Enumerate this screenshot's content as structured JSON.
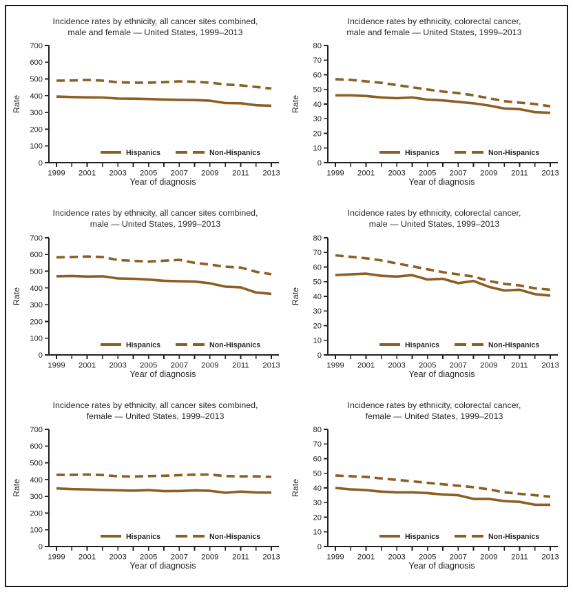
{
  "figure": {
    "line_color": "#8C5F23",
    "axis_color": "#231F20",
    "legend_labels": [
      "Hispanics",
      "Non-Hispanics"
    ]
  },
  "chart_data": [
    {
      "type": "line",
      "title_line1": "Incidence rates by ethnicity, all cancer sites combined,",
      "title_line2": "male and female — United States, 1999–2013",
      "xlabel": "Year of diagnosis",
      "ylabel": "Rate",
      "ylim": [
        0,
        700
      ],
      "ytick_step": 100,
      "grid": false,
      "legend_position": "bottom-center",
      "x": [
        1999,
        2000,
        2001,
        2002,
        2003,
        2004,
        2005,
        2006,
        2007,
        2008,
        2009,
        2010,
        2011,
        2012,
        2013
      ],
      "xtick_labels": [
        "1999",
        "2001",
        "2003",
        "2005",
        "2007",
        "2009",
        "2011",
        "2013"
      ],
      "series": [
        {
          "name": "Hispanics",
          "style": "solid",
          "values": [
            395,
            392,
            390,
            389,
            383,
            382,
            380,
            377,
            375,
            374,
            370,
            356,
            355,
            343,
            340
          ]
        },
        {
          "name": "Non-Hispanics",
          "style": "dashed",
          "values": [
            490,
            491,
            494,
            490,
            480,
            478,
            478,
            481,
            486,
            483,
            478,
            467,
            462,
            452,
            443
          ]
        }
      ]
    },
    {
      "type": "line",
      "title_line1": "Incidence rates by ethnicity, colorectal cancer,",
      "title_line2": "male and female — United States, 1999–2013",
      "xlabel": "Year of diagnosis",
      "ylabel": "Rate",
      "ylim": [
        0,
        80
      ],
      "ytick_step": 10,
      "grid": false,
      "legend_position": "bottom-center",
      "x": [
        1999,
        2000,
        2001,
        2002,
        2003,
        2004,
        2005,
        2006,
        2007,
        2008,
        2009,
        2010,
        2011,
        2012,
        2013
      ],
      "xtick_labels": [
        "1999",
        "2001",
        "2003",
        "2005",
        "2007",
        "2009",
        "2011",
        "2013"
      ],
      "series": [
        {
          "name": "Hispanics",
          "style": "solid",
          "values": [
            46,
            46,
            45.5,
            44.5,
            44,
            44.5,
            43,
            42.5,
            41.5,
            40.5,
            39,
            37,
            36.5,
            34.5,
            34
          ]
        },
        {
          "name": "Non-Hispanics",
          "style": "dashed",
          "values": [
            57,
            56.5,
            55.5,
            54.5,
            53,
            51.5,
            50,
            48.5,
            47.5,
            46,
            44,
            42,
            41,
            40,
            38.5
          ]
        }
      ]
    },
    {
      "type": "line",
      "title_line1": "Incidence rates by ethnicity, all cancer sites combined,",
      "title_line2": "male — United States, 1999–2013",
      "xlabel": "Year of diagnosis",
      "ylabel": "Rate",
      "ylim": [
        0,
        700
      ],
      "ytick_step": 100,
      "grid": false,
      "legend_position": "bottom-center",
      "x": [
        1999,
        2000,
        2001,
        2002,
        2003,
        2004,
        2005,
        2006,
        2007,
        2008,
        2009,
        2010,
        2011,
        2012,
        2013
      ],
      "xtick_labels": [
        "1999",
        "2001",
        "2003",
        "2005",
        "2007",
        "2009",
        "2011",
        "2013"
      ],
      "series": [
        {
          "name": "Hispanics",
          "style": "solid",
          "values": [
            470,
            472,
            468,
            470,
            457,
            455,
            450,
            443,
            440,
            438,
            428,
            408,
            404,
            373,
            365
          ]
        },
        {
          "name": "Non-Hispanics",
          "style": "dashed",
          "values": [
            583,
            585,
            588,
            585,
            567,
            562,
            558,
            563,
            568,
            550,
            540,
            527,
            522,
            497,
            482
          ]
        }
      ]
    },
    {
      "type": "line",
      "title_line1": "Incidence rates by ethnicity, colorectal cancer,",
      "title_line2": "male — United States, 1999–2013",
      "xlabel": "Year of diagnosis",
      "ylabel": "Rate",
      "ylim": [
        0,
        80
      ],
      "ytick_step": 10,
      "grid": false,
      "legend_position": "bottom-center",
      "x": [
        1999,
        2000,
        2001,
        2002,
        2003,
        2004,
        2005,
        2006,
        2007,
        2008,
        2009,
        2010,
        2011,
        2012,
        2013
      ],
      "xtick_labels": [
        "1999",
        "2001",
        "2003",
        "2005",
        "2007",
        "2009",
        "2011",
        "2013"
      ],
      "series": [
        {
          "name": "Hispanics",
          "style": "solid",
          "values": [
            54.5,
            55,
            55.5,
            54,
            53.5,
            54.5,
            51.5,
            52,
            49,
            50.5,
            46.5,
            44,
            44.5,
            41.5,
            40.5
          ]
        },
        {
          "name": "Non-Hispanics",
          "style": "dashed",
          "values": [
            68,
            67,
            66,
            64.5,
            62.5,
            60.5,
            58.5,
            56.5,
            55,
            53.5,
            50.5,
            48.5,
            47.5,
            45.5,
            44.5
          ]
        }
      ]
    },
    {
      "type": "line",
      "title_line1": "Incidence rates by ethnicity, all cancer sites combined,",
      "title_line2": "female — United States, 1999–2013",
      "xlabel": "Year of diagnosis",
      "ylabel": "Rate",
      "ylim": [
        0,
        700
      ],
      "ytick_step": 100,
      "grid": false,
      "legend_position": "bottom-center",
      "x": [
        1999,
        2000,
        2001,
        2002,
        2003,
        2004,
        2005,
        2006,
        2007,
        2008,
        2009,
        2010,
        2011,
        2012,
        2013
      ],
      "xtick_labels": [
        "1999",
        "2001",
        "2003",
        "2005",
        "2007",
        "2009",
        "2011",
        "2013"
      ],
      "series": [
        {
          "name": "Hispanics",
          "style": "solid",
          "values": [
            347,
            343,
            341,
            338,
            336,
            334,
            337,
            331,
            332,
            335,
            333,
            321,
            328,
            323,
            322
          ]
        },
        {
          "name": "Non-Hispanics",
          "style": "dashed",
          "values": [
            428,
            428,
            430,
            427,
            420,
            418,
            421,
            423,
            426,
            429,
            430,
            421,
            419,
            419,
            416
          ]
        }
      ]
    },
    {
      "type": "line",
      "title_line1": "Incidence rates by ethnicity, colorectal cancer,",
      "title_line2": "female — United States, 1999–2013",
      "xlabel": "Year of diagnosis",
      "ylabel": "Rate",
      "ylim": [
        0,
        80
      ],
      "ytick_step": 10,
      "grid": false,
      "legend_position": "bottom-center",
      "x": [
        1999,
        2000,
        2001,
        2002,
        2003,
        2004,
        2005,
        2006,
        2007,
        2008,
        2009,
        2010,
        2011,
        2012,
        2013
      ],
      "xtick_labels": [
        "1999",
        "2001",
        "2003",
        "2005",
        "2007",
        "2009",
        "2011",
        "2013"
      ],
      "series": [
        {
          "name": "Hispanics",
          "style": "solid",
          "values": [
            40,
            39,
            38.5,
            37.5,
            37,
            37,
            36.5,
            35.5,
            35,
            32.5,
            32.5,
            31,
            30.5,
            28.5,
            28.5
          ]
        },
        {
          "name": "Non-Hispanics",
          "style": "dashed",
          "values": [
            48.5,
            48,
            47.5,
            46.5,
            45.5,
            44.5,
            43.5,
            42.5,
            41.5,
            40.5,
            39,
            37,
            36,
            35,
            34
          ]
        }
      ]
    }
  ]
}
